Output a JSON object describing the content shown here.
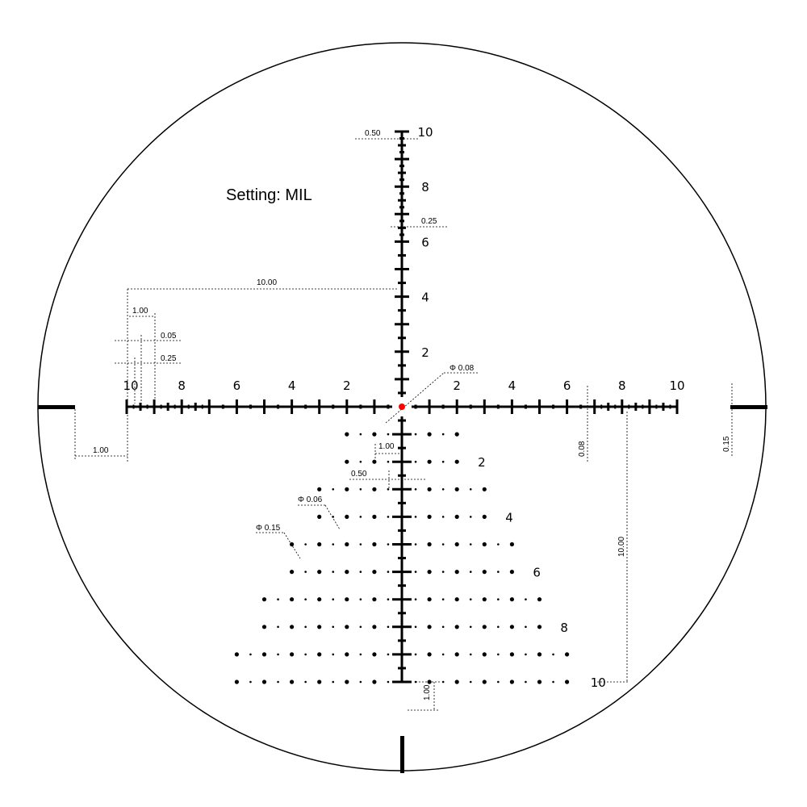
{
  "setting_label": "Setting: MIL",
  "units_per_mil_note": "MIL",
  "colors": {
    "reticle": "#000000",
    "center_dot": "#ff0000"
  },
  "horizontal_scale": {
    "left_labels": [
      "10",
      "8",
      "6",
      "4",
      "2"
    ],
    "right_labels": [
      "2",
      "4",
      "6",
      "8",
      "10"
    ],
    "extent_mil": 10
  },
  "vertical_scale": {
    "labels": [
      "2",
      "4",
      "6",
      "8",
      "10"
    ],
    "extent_mil": 10
  },
  "dot_tree": {
    "rows": 10,
    "half_widths_mil": [
      2,
      2,
      3,
      3,
      4,
      4,
      5,
      5,
      6,
      6
    ],
    "row_labels": [
      "2",
      "4",
      "6",
      "8",
      "10"
    ]
  },
  "dimensions": {
    "top_tick_width": "0.50",
    "upper_tick_width": "0.25",
    "left_span": "10.00",
    "left_major_spacing": "1.00",
    "fine_tick_spacing": "0.05",
    "fine_tick_width": "0.25",
    "post_gap": "1.00",
    "center_dot": "Φ 0.08",
    "line_thickness": "0.08",
    "right_span": "10.00",
    "post_thickness": "0.15",
    "dot_spacing": "1.00",
    "dot_half_spacing": "0.50",
    "small_dot": "Φ 0.06",
    "large_dot": "Φ 0.15",
    "row_spacing": "1.00"
  }
}
